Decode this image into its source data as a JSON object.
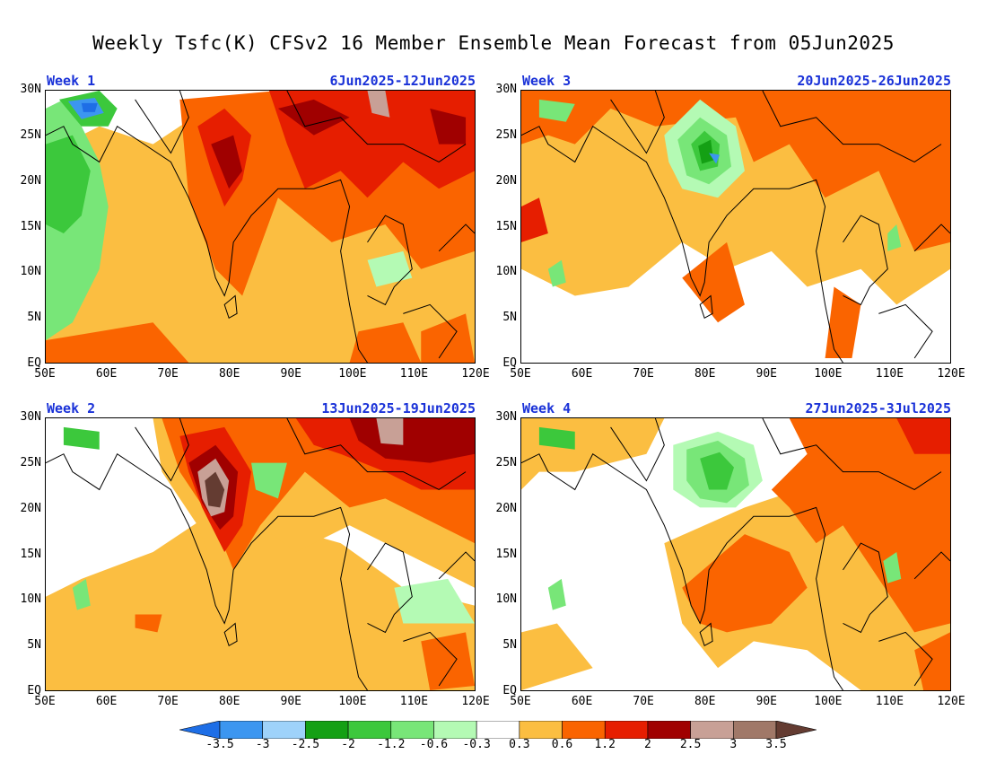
{
  "title": "Weekly Tsfc(K) CFSv2 16 Member Ensemble Mean Forecast from 05Jun2025",
  "variable": "Tsfc(K)",
  "lat_labels": [
    "30N",
    "25N",
    "20N",
    "15N",
    "10N",
    "5N",
    "EQ"
  ],
  "lon_labels": [
    "50E",
    "60E",
    "70E",
    "80E",
    "90E",
    "100E",
    "110E",
    "120E"
  ],
  "panels": [
    {
      "id": "week1",
      "label": "Week 1",
      "dates": "6Jun2025-12Jun2025"
    },
    {
      "id": "week3",
      "label": "Week 3",
      "dates": "20Jun2025-26Jun2025"
    },
    {
      "id": "week2",
      "label": "Week 2",
      "dates": "13Jun2025-19Jun2025"
    },
    {
      "id": "week4",
      "label": "Week 4",
      "dates": "27Jun2025-3Jul2025"
    }
  ],
  "colorbar": {
    "labels": [
      "-3.5",
      "-3",
      "-2.5",
      "-2",
      "-1.2",
      "-0.6",
      "-0.3",
      "0.3",
      "0.6",
      "1.2",
      "2",
      "2.5",
      "3",
      "3.5"
    ],
    "colors": [
      "#1e6ee6",
      "#3c96f0",
      "#9ed2fa",
      "#14a014",
      "#3cc83c",
      "#78e678",
      "#b4fab4",
      "#ffffff",
      "#fbbe41",
      "#fa6400",
      "#e61e00",
      "#a00000",
      "#c8a096",
      "#a07868",
      "#643c32"
    ]
  },
  "colors": {
    "label_blue": "#1a32d8",
    "warm1": "#fbbe41",
    "warm2": "#fa6400",
    "warm3": "#e61e00",
    "warm4": "#a00000",
    "warm5": "#c8a096",
    "warm6": "#643c32",
    "cool1": "#b4fab4",
    "cool2": "#78e678",
    "cool3": "#3cc83c",
    "cool4": "#14a014",
    "cool5": "#9ed2fa",
    "cool6": "#3c96f0"
  }
}
